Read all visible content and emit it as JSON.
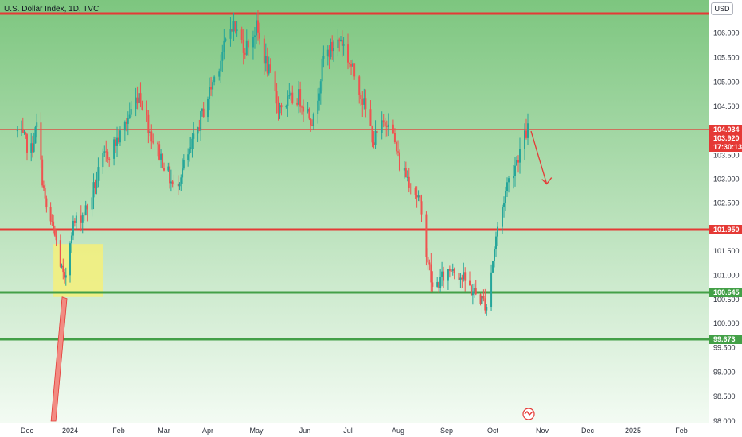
{
  "header": {
    "title": "U.S. Dollar Index, 1D, TVC"
  },
  "currency_button": {
    "label": "USD"
  },
  "colors": {
    "bg_top": "#7dc67f",
    "bg_bottom": "#f3fbf3",
    "candle_up": "#26a69a",
    "candle_down": "#ef5350",
    "red_line": "#e53935",
    "green_line": "#43a047",
    "highlight_box": "#f4f07a",
    "price_tag_red": "#e53935",
    "price_tag_green": "#43a047"
  },
  "chart_data": {
    "type": "candlestick",
    "title": "U.S. Dollar Index, 1D, TVC",
    "x_tick_labels": [
      "Dec",
      "2024",
      "Feb",
      "Mar",
      "Apr",
      "May",
      "Jun",
      "Jul",
      "Aug",
      "Sep",
      "Oct",
      "Nov",
      "Dec",
      "2025",
      "Feb"
    ],
    "y_tick_labels": [
      "106.000",
      "105.500",
      "105.000",
      "104.500",
      "103.500",
      "103.000",
      "102.500",
      "101.500",
      "101.000",
      "100.500",
      "100.000",
      "99.500",
      "99.000",
      "98.500",
      "98.000"
    ],
    "ylim": [
      98.0,
      106.4
    ],
    "price_path": [
      {
        "d": "2023-11-24",
        "v": 104.0
      },
      {
        "d": "2023-12-04",
        "v": 103.6
      },
      {
        "d": "2023-12-08",
        "v": 104.1
      },
      {
        "d": "2023-12-14",
        "v": 102.5
      },
      {
        "d": "2023-12-22",
        "v": 101.7
      },
      {
        "d": "2023-12-28",
        "v": 100.8
      },
      {
        "d": "2024-01-02",
        "v": 102.0
      },
      {
        "d": "2024-01-12",
        "v": 102.4
      },
      {
        "d": "2024-01-22",
        "v": 103.4
      },
      {
        "d": "2024-02-02",
        "v": 103.9
      },
      {
        "d": "2024-02-14",
        "v": 104.8
      },
      {
        "d": "2024-02-22",
        "v": 103.9
      },
      {
        "d": "2024-03-08",
        "v": 102.8
      },
      {
        "d": "2024-03-20",
        "v": 103.6
      },
      {
        "d": "2024-04-02",
        "v": 104.8
      },
      {
        "d": "2024-04-16",
        "v": 106.2
      },
      {
        "d": "2024-04-24",
        "v": 105.7
      },
      {
        "d": "2024-05-01",
        "v": 106.1
      },
      {
        "d": "2024-05-15",
        "v": 104.5
      },
      {
        "d": "2024-05-28",
        "v": 104.7
      },
      {
        "d": "2024-06-07",
        "v": 104.2
      },
      {
        "d": "2024-06-14",
        "v": 105.5
      },
      {
        "d": "2024-06-26",
        "v": 105.9
      },
      {
        "d": "2024-07-08",
        "v": 104.9
      },
      {
        "d": "2024-07-17",
        "v": 103.8
      },
      {
        "d": "2024-07-26",
        "v": 104.3
      },
      {
        "d": "2024-08-02",
        "v": 103.3
      },
      {
        "d": "2024-08-08",
        "v": 103.0
      },
      {
        "d": "2024-08-14",
        "v": 102.6
      },
      {
        "d": "2024-08-23",
        "v": 100.7
      },
      {
        "d": "2024-09-05",
        "v": 101.2
      },
      {
        "d": "2024-09-17",
        "v": 100.7
      },
      {
        "d": "2024-09-27",
        "v": 100.4
      },
      {
        "d": "2024-10-03",
        "v": 101.8
      },
      {
        "d": "2024-10-10",
        "v": 102.9
      },
      {
        "d": "2024-10-16",
        "v": 103.4
      },
      {
        "d": "2024-10-23",
        "v": 104.05
      }
    ],
    "horizontal_levels": [
      {
        "price": 106.4,
        "color": "red"
      },
      {
        "price": 104.034,
        "color": "red",
        "label": "104.034"
      },
      {
        "price": 101.95,
        "color": "red",
        "label": "101.950"
      },
      {
        "price": 100.645,
        "color": "green",
        "label": "100.645"
      },
      {
        "price": 99.673,
        "color": "green",
        "label": "99.673"
      }
    ],
    "last_price": {
      "value": "103.920",
      "countdown": "17:30:13"
    },
    "projection_arrow": {
      "from": {
        "d": "2024-10-25",
        "v": 104.0
      },
      "to": {
        "d": "2024-11-04",
        "v": 102.9
      }
    },
    "zone_box": {
      "from": "2023-12-20",
      "to": "2024-01-22",
      "top": 101.65,
      "bottom": 100.55
    },
    "long_arrow": {
      "from": {
        "d": "2023-12-28",
        "v": 100.55
      },
      "to": {
        "d": "2023-12-20",
        "v": 98.0
      }
    }
  }
}
